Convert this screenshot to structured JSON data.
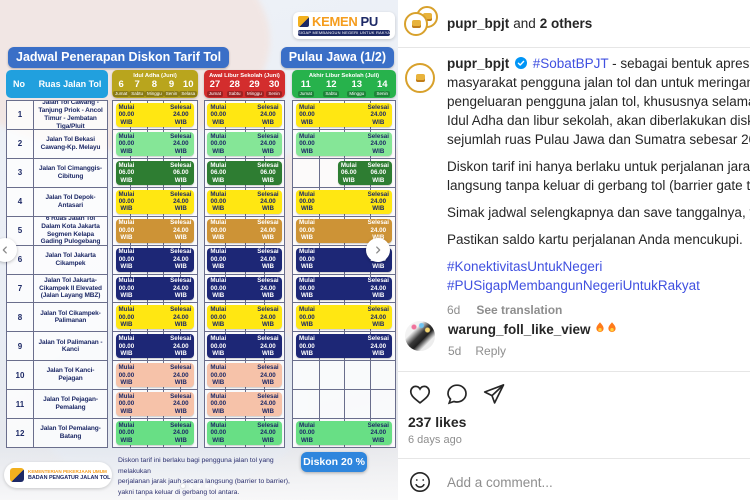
{
  "colors": {
    "link_blue": "#4050e0",
    "verified_blue": "#0095f6",
    "title_pill_blue": "#3a6fc7",
    "table_header_blue": "#21a0de",
    "discount_button_blue": "#2f86dd"
  },
  "infographic": {
    "logo": {
      "kemen": "KEMEN",
      "pu": "PU",
      "tagline": "SIGAP MEMBANGUN NEGERI UNTUK RAKYAT"
    },
    "title": "Jadwal Penerapan Diskon Tarif Tol",
    "region": "Pulau Jawa (1/2)",
    "table": {
      "no_label": "No",
      "ruas_label": "Ruas Jalan Tol",
      "labels": {
        "mulai": "Mulai",
        "selesai": "Selesai",
        "wib": "WIB"
      },
      "groups": [
        {
          "title": "Idul Adha (Juni)",
          "color": "#b9a51d",
          "dates": [
            {
              "d": "6",
              "day": "Jumat"
            },
            {
              "d": "7",
              "day": "Sabtu"
            },
            {
              "d": "8",
              "day": "Minggu"
            },
            {
              "d": "9",
              "day": "Senin"
            },
            {
              "d": "10",
              "day": "Selasa"
            }
          ]
        },
        {
          "title": "Awal Libur Sekolah (Juni)",
          "color": "#d32d2d",
          "dates": [
            {
              "d": "27",
              "day": "Jumat"
            },
            {
              "d": "28",
              "day": "Sabtu"
            },
            {
              "d": "29",
              "day": "Minggu"
            },
            {
              "d": "30",
              "day": "Senin"
            }
          ]
        },
        {
          "title": "Akhir Libur Sekolah (Juli)",
          "color": "#27b24c",
          "dates": [
            {
              "d": "11",
              "day": "Jumat"
            },
            {
              "d": "12",
              "day": "Sabtu"
            },
            {
              "d": "13",
              "day": "Minggu"
            },
            {
              "d": "14",
              "day": "Senin"
            }
          ]
        }
      ],
      "rows": [
        {
          "no": "1",
          "name": "Jalan Tol Cawang -Tanjung Priok - Ancol Timur - Jembatan Tiga/Pluit",
          "bg": "#ffe712",
          "fg": "#1d2966",
          "start": "00.00",
          "end": "24.00",
          "g1": "full",
          "g2": "full",
          "g3": "full"
        },
        {
          "no": "2",
          "name": "Jalan Tol Bekasi Cawang-Kp. Melayu",
          "bg": "#85e697",
          "fg": "#1d2966",
          "start": "00.00",
          "end": "24.00",
          "g1": "full",
          "g2": "full",
          "g3": "full"
        },
        {
          "no": "3",
          "name": "Jalan Tol Cimanggis-Cibitung",
          "bg": "#2e7d32",
          "fg": "#ffffff",
          "start": "06.00",
          "end": "06.00",
          "g1": "full",
          "g2": "full",
          "g3": "right"
        },
        {
          "no": "4",
          "name": "Jalan Tol Depok-Antasari",
          "bg": "#ffe712",
          "fg": "#1d2966",
          "start": "00.00",
          "end": "24.00",
          "g1": "full",
          "g2": "full",
          "g3": "full"
        },
        {
          "no": "5",
          "name": "6 Ruas Jalan Tol Dalam Kota Jakarta Segmen Kelapa Gading Pulogebang",
          "bg": "#cd9336",
          "fg": "#ffffff",
          "start": "00.00",
          "end": "24.00",
          "g1": "full",
          "g2": "full",
          "g3": "full"
        },
        {
          "no": "6",
          "name": "Jalan Tol Jakarta Cikampek",
          "bg": "#1d2776",
          "fg": "#ffffff",
          "start": "00.00",
          "end": "24.00",
          "g1": "full",
          "g2": "full",
          "g3": "full"
        },
        {
          "no": "7",
          "name": "Jalan Tol Jakarta-Cikampek II Elevated (Jalan Layang MBZ)",
          "bg": "#1d2776",
          "fg": "#ffffff",
          "start": "00.00",
          "end": "24.00",
          "g1": "full",
          "g2": "full",
          "g3": "full"
        },
        {
          "no": "8",
          "name": "Jalan Tol Cikampek-Palimanan",
          "bg": "#ffe712",
          "fg": "#1d2966",
          "start": "00.00",
          "end": "24.00",
          "g1": "full",
          "g2": "full",
          "g3": "full"
        },
        {
          "no": "9",
          "name": "Jalan Tol Palimanan - Kanci",
          "bg": "#1d2776",
          "fg": "#ffffff",
          "start": "00.00",
          "end": "24.00",
          "g1": "full",
          "g2": "full",
          "g3": "full"
        },
        {
          "no": "10",
          "name": "Jalan Tol Kanci-Pejagan",
          "bg": "#f6c2a9",
          "fg": "#1d2966",
          "start": "00.00",
          "end": "24.00",
          "g1": "full",
          "g2": "full",
          "g3": "none"
        },
        {
          "no": "11",
          "name": "Jalan Tol Pejagan-Pemalang",
          "bg": "#f6c2a9",
          "fg": "#1d2966",
          "start": "00.00",
          "end": "24.00",
          "g1": "full",
          "g2": "full",
          "g3": "none"
        },
        {
          "no": "12",
          "name": "Jalan Tol Pemalang-Batang",
          "bg": "#68df85",
          "fg": "#1d2966",
          "start": "00.00",
          "end": "24.00",
          "g1": "full",
          "g2": "full",
          "g3": "full"
        }
      ]
    },
    "footer": {
      "logo_line1": "KEMENTERIAN PEKERJAAN UMUM",
      "logo_line2": "BADAN PENGATUR JALAN TOL",
      "note_lines": [
        "Diskon tarif ini berlaku bagi pengguna jalan tol yang melakukan",
        "perjalanan jarak jauh secara langsung (barrier to barrier),",
        "yakni tanpa keluar di gerbang tol antara."
      ],
      "discount_label": "Diskon 20 %"
    },
    "carousel": {
      "dots": 5,
      "active_dot": 0
    }
  },
  "panel": {
    "header": {
      "username": "pupr_bpjt",
      "and_text": "and",
      "others": "2 others"
    },
    "caption": {
      "username": "pupr_bpjt",
      "hashtag_lead": "#SobatBPJT",
      "line1_rest": " - sebagai bentuk apresiasi kepad",
      "paragraphs": [
        [
          "masyarakat pengguna jalan tol dan untuk meringankan beb",
          "pengeluaran pengguna jalan tol, khususnya selama masa p",
          "Idul Adha dan libur sekolah, akan diberlakukan diskon tarif t",
          "sejumlah ruas Pulau Jawa dan Sumatra sebesar 20%."
        ],
        [
          "Diskon tarif ini hanya berlaku untuk perjalanan jarak jauh se",
          "langsung tanpa keluar di gerbang tol (barrier gate to barrier"
        ],
        [
          "Simak jadwal selengkapnya dan save tanggalnya, ya."
        ],
        [
          "Pastikan saldo kartu perjalanan Anda mencukupi."
        ]
      ],
      "hashtags": [
        "#KonektivitasUntukNegeri",
        "#PUSigapMembangunNegeriUntukRakyat"
      ],
      "time": "6d",
      "see_translation": "See translation"
    },
    "comment": {
      "username": "warung_foll_like_view",
      "emoji": "🔥🔥",
      "time": "5d",
      "reply": "Reply"
    },
    "likes": "237 likes",
    "posted": "6 days ago",
    "add_comment_placeholder": "Add a comment..."
  }
}
